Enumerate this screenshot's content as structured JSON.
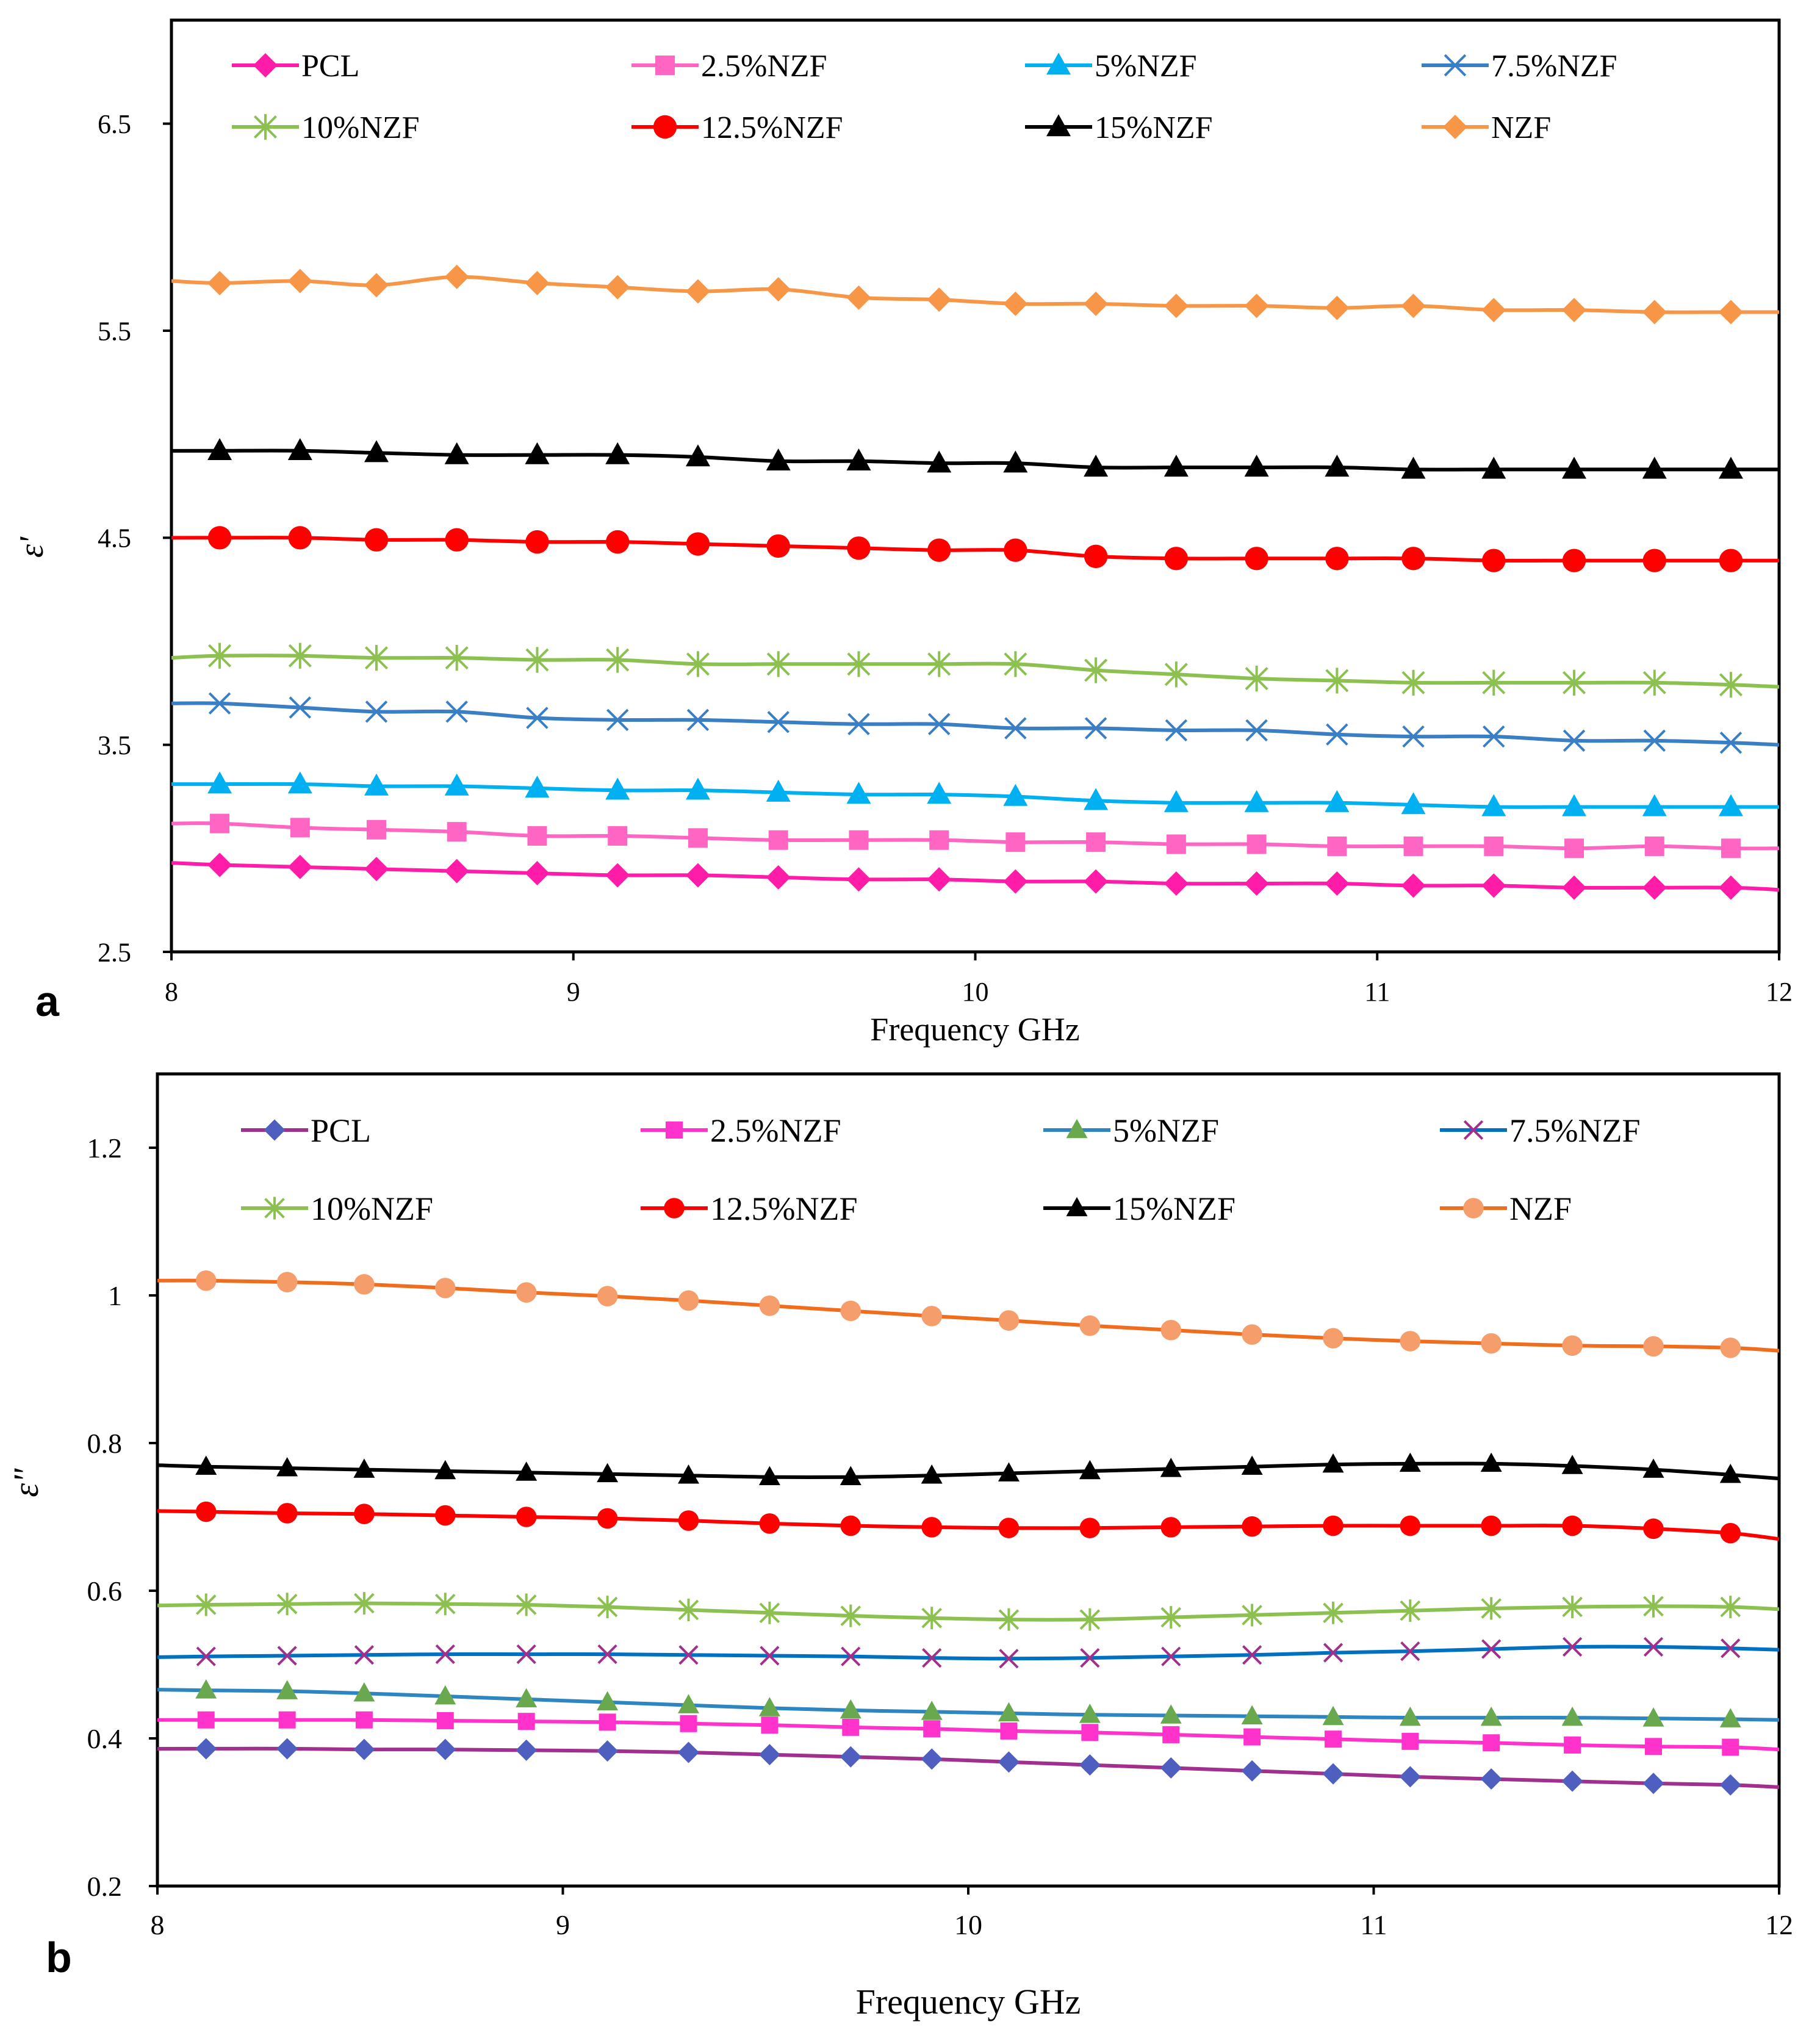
{
  "chart_data": [
    {
      "type": "line",
      "panel_label": "a",
      "xlabel": "Frequency  GHz",
      "ylabel": "ε'",
      "xlim": [
        8,
        12
      ],
      "ylim": [
        2.5,
        7.0
      ],
      "xticks": [
        "8",
        "9",
        "10",
        "11",
        "12"
      ],
      "yticks": [
        "2.5",
        "3.5",
        "4.5",
        "5.5",
        "6.5"
      ],
      "ytick_values": [
        2.5,
        3.5,
        4.5,
        5.5,
        6.5
      ],
      "grid": false,
      "legend_position": "top",
      "x": [
        8.12,
        8.32,
        8.51,
        8.71,
        8.91,
        9.11,
        9.31,
        9.51,
        9.71,
        9.91,
        10.1,
        10.3,
        10.5,
        10.7,
        10.9,
        11.09,
        11.29,
        11.49,
        11.69,
        11.88
      ],
      "series": [
        {
          "name": "PCL",
          "color": "#ff1ca8",
          "marker": "diamond",
          "start": 2.93,
          "end": 2.8,
          "values": [
            2.92,
            2.91,
            2.9,
            2.89,
            2.88,
            2.87,
            2.87,
            2.86,
            2.85,
            2.85,
            2.84,
            2.84,
            2.83,
            2.83,
            2.83,
            2.82,
            2.82,
            2.81,
            2.81,
            2.81
          ]
        },
        {
          "name": "2.5%NZF",
          "color": "#ff66c4",
          "marker": "square",
          "start": 3.12,
          "end": 3.0,
          "values": [
            3.12,
            3.1,
            3.09,
            3.08,
            3.06,
            3.06,
            3.05,
            3.04,
            3.04,
            3.04,
            3.03,
            3.03,
            3.02,
            3.02,
            3.01,
            3.01,
            3.01,
            3.0,
            3.01,
            3.0
          ]
        },
        {
          "name": "5%NZF",
          "color": "#00b0f0",
          "marker": "triangle",
          "start": 3.31,
          "end": 3.2,
          "values": [
            3.31,
            3.31,
            3.3,
            3.3,
            3.29,
            3.28,
            3.28,
            3.27,
            3.26,
            3.26,
            3.25,
            3.23,
            3.22,
            3.22,
            3.22,
            3.21,
            3.2,
            3.2,
            3.2,
            3.2
          ]
        },
        {
          "name": "7.5%NZF",
          "color": "#3a7ec4",
          "marker": "x",
          "start": 3.7,
          "end": 3.5,
          "values": [
            3.7,
            3.68,
            3.66,
            3.66,
            3.63,
            3.62,
            3.62,
            3.61,
            3.6,
            3.6,
            3.58,
            3.58,
            3.57,
            3.57,
            3.55,
            3.54,
            3.54,
            3.52,
            3.52,
            3.51
          ]
        },
        {
          "name": "10%NZF",
          "color": "#8cc152",
          "marker": "star",
          "start": 3.92,
          "end": 3.78,
          "values": [
            3.93,
            3.93,
            3.92,
            3.92,
            3.91,
            3.91,
            3.89,
            3.89,
            3.89,
            3.89,
            3.89,
            3.86,
            3.84,
            3.82,
            3.81,
            3.8,
            3.8,
            3.8,
            3.8,
            3.79
          ]
        },
        {
          "name": "12.5%NZF",
          "color": "#ff0000",
          "marker": "circle",
          "start": 4.5,
          "end": 4.39,
          "values": [
            4.5,
            4.5,
            4.49,
            4.49,
            4.48,
            4.48,
            4.47,
            4.46,
            4.45,
            4.44,
            4.44,
            4.41,
            4.4,
            4.4,
            4.4,
            4.4,
            4.39,
            4.39,
            4.39,
            4.39
          ]
        },
        {
          "name": "15%NZF",
          "color": "#000000",
          "marker": "triangle",
          "start": 4.92,
          "end": 4.83,
          "values": [
            4.92,
            4.92,
            4.91,
            4.9,
            4.9,
            4.9,
            4.89,
            4.87,
            4.87,
            4.86,
            4.86,
            4.84,
            4.84,
            4.84,
            4.84,
            4.83,
            4.83,
            4.83,
            4.83,
            4.83
          ]
        },
        {
          "name": "NZF",
          "color": "#f79646",
          "marker": "diamond",
          "start": 5.74,
          "end": 5.59,
          "values": [
            5.73,
            5.74,
            5.72,
            5.76,
            5.73,
            5.71,
            5.69,
            5.7,
            5.66,
            5.65,
            5.63,
            5.63,
            5.62,
            5.62,
            5.61,
            5.62,
            5.6,
            5.6,
            5.59,
            5.59
          ]
        }
      ]
    },
    {
      "type": "line",
      "panel_label": "b",
      "xlabel": "Frequency  GHz",
      "ylabel": "ε\"",
      "xlim": [
        8,
        12
      ],
      "ylim": [
        0.2,
        1.3
      ],
      "xticks": [
        "8",
        "9",
        "10",
        "11",
        "12"
      ],
      "yticks": [
        "0.2",
        "0.4",
        "0.6",
        "0.8",
        "1",
        "1.2"
      ],
      "ytick_values": [
        0.2,
        0.4,
        0.6,
        0.8,
        1.0,
        1.2
      ],
      "grid": false,
      "legend_position": "top",
      "x": [
        8.12,
        8.32,
        8.51,
        8.71,
        8.91,
        9.11,
        9.31,
        9.51,
        9.71,
        9.91,
        10.1,
        10.3,
        10.5,
        10.7,
        10.9,
        11.09,
        11.29,
        11.49,
        11.69,
        11.88
      ],
      "series": [
        {
          "name": "PCL",
          "color": "#a0308c",
          "marker": "diamond",
          "marker_color": "#4f5fbf",
          "start": 0.386,
          "end": 0.334,
          "values": [
            0.386,
            0.386,
            0.385,
            0.385,
            0.384,
            0.383,
            0.381,
            0.378,
            0.375,
            0.372,
            0.368,
            0.364,
            0.36,
            0.356,
            0.352,
            0.348,
            0.345,
            0.342,
            0.339,
            0.337
          ]
        },
        {
          "name": "2.5%NZF",
          "color": "#ff33cc",
          "marker": "square",
          "start": 0.425,
          "end": 0.385,
          "values": [
            0.425,
            0.425,
            0.425,
            0.424,
            0.423,
            0.422,
            0.42,
            0.418,
            0.415,
            0.413,
            0.41,
            0.408,
            0.405,
            0.402,
            0.399,
            0.396,
            0.394,
            0.391,
            0.389,
            0.388
          ]
        },
        {
          "name": "5%NZF",
          "color": "#2e86c1",
          "marker": "triangle",
          "marker_color": "#6aa84f",
          "start": 0.466,
          "end": 0.425,
          "values": [
            0.465,
            0.464,
            0.461,
            0.457,
            0.453,
            0.449,
            0.445,
            0.441,
            0.438,
            0.436,
            0.434,
            0.432,
            0.431,
            0.43,
            0.429,
            0.428,
            0.428,
            0.428,
            0.427,
            0.426
          ]
        },
        {
          "name": "7.5%NZF",
          "color": "#0070c0",
          "marker": "x",
          "marker_color": "#a0308c",
          "start": 0.51,
          "end": 0.52,
          "values": [
            0.511,
            0.512,
            0.513,
            0.514,
            0.514,
            0.514,
            0.513,
            0.512,
            0.511,
            0.509,
            0.508,
            0.509,
            0.511,
            0.513,
            0.516,
            0.518,
            0.521,
            0.524,
            0.524,
            0.522
          ]
        },
        {
          "name": "10%NZF",
          "color": "#8cc152",
          "marker": "star",
          "start": 0.58,
          "end": 0.575,
          "values": [
            0.581,
            0.582,
            0.583,
            0.582,
            0.581,
            0.578,
            0.574,
            0.57,
            0.566,
            0.563,
            0.561,
            0.561,
            0.564,
            0.567,
            0.57,
            0.573,
            0.576,
            0.578,
            0.579,
            0.578
          ]
        },
        {
          "name": "12.5%NZF",
          "color": "#ff0000",
          "marker": "circle",
          "marker_color": "#ff0000",
          "start": 0.708,
          "end": 0.67,
          "values": [
            0.707,
            0.705,
            0.704,
            0.702,
            0.7,
            0.698,
            0.695,
            0.691,
            0.688,
            0.686,
            0.685,
            0.685,
            0.686,
            0.687,
            0.688,
            0.688,
            0.688,
            0.688,
            0.684,
            0.678
          ]
        },
        {
          "name": "15%NZF",
          "color": "#000000",
          "marker": "triangle",
          "start": 0.77,
          "end": 0.752,
          "values": [
            0.768,
            0.766,
            0.764,
            0.762,
            0.76,
            0.758,
            0.756,
            0.754,
            0.754,
            0.756,
            0.759,
            0.762,
            0.765,
            0.768,
            0.771,
            0.772,
            0.772,
            0.769,
            0.764,
            0.757
          ]
        },
        {
          "name": "NZF",
          "color": "#f26c1e",
          "marker": "circle",
          "marker_color": "#f59d6b",
          "start": 1.02,
          "end": 0.925,
          "values": [
            1.02,
            1.018,
            1.015,
            1.01,
            1.004,
            0.999,
            0.993,
            0.986,
            0.979,
            0.972,
            0.966,
            0.959,
            0.953,
            0.947,
            0.942,
            0.938,
            0.935,
            0.932,
            0.931,
            0.929
          ]
        }
      ]
    }
  ]
}
